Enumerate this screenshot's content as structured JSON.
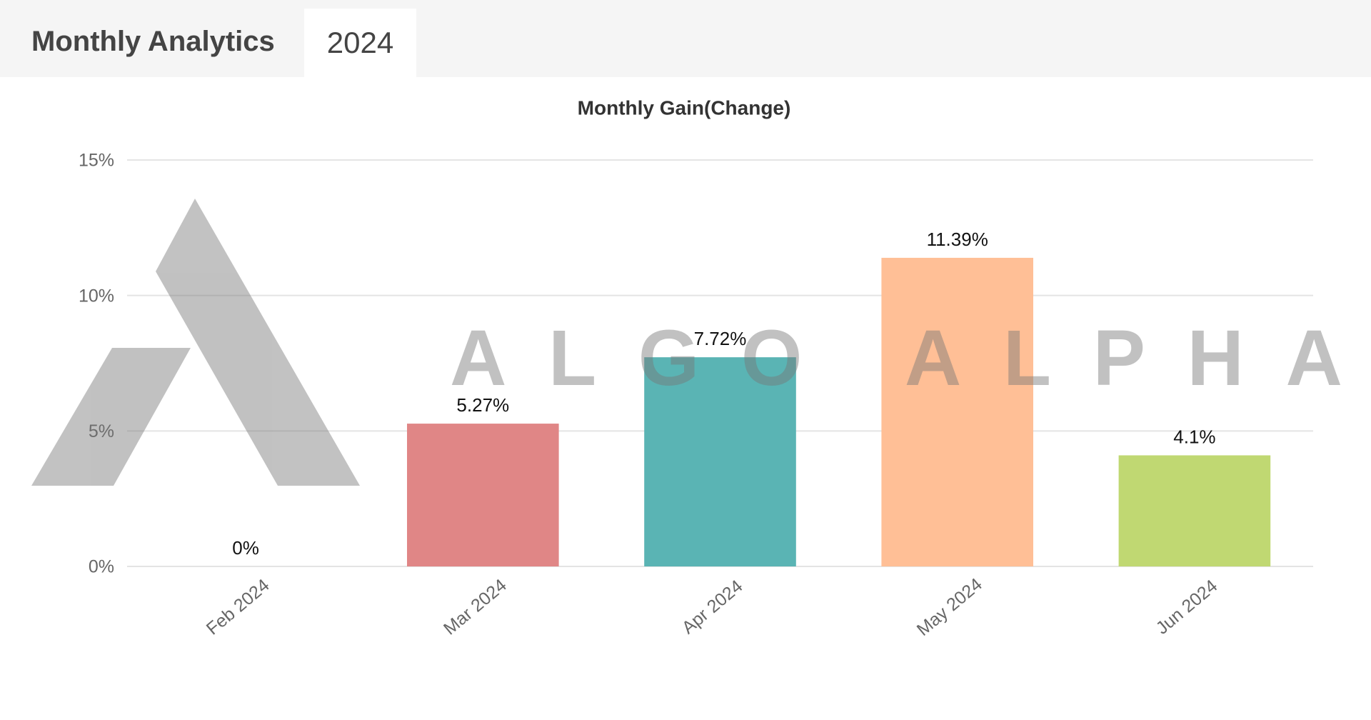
{
  "header": {
    "title": "Monthly Analytics",
    "tab": "2024"
  },
  "watermark": "ALGO ALPHA",
  "chart_data": {
    "type": "bar",
    "title": "Monthly Gain(Change)",
    "categories": [
      "Feb 2024",
      "Mar 2024",
      "Apr 2024",
      "May 2024",
      "Jun 2024"
    ],
    "values": [
      0,
      5.27,
      7.72,
      11.39,
      4.1
    ],
    "value_labels": [
      "0%",
      "5.27%",
      "7.72%",
      "11.39%",
      "4.1%"
    ],
    "colors": [
      "#9ecae1",
      "#e08686",
      "#5ab4b4",
      "#ffbf96",
      "#c0d872"
    ],
    "ylim": [
      0,
      15
    ],
    "yticks": [
      {
        "value": 0,
        "label": "0%"
      },
      {
        "value": 5,
        "label": "5%"
      },
      {
        "value": 10,
        "label": "10%"
      },
      {
        "value": 15,
        "label": "15%"
      }
    ],
    "grid": true
  }
}
